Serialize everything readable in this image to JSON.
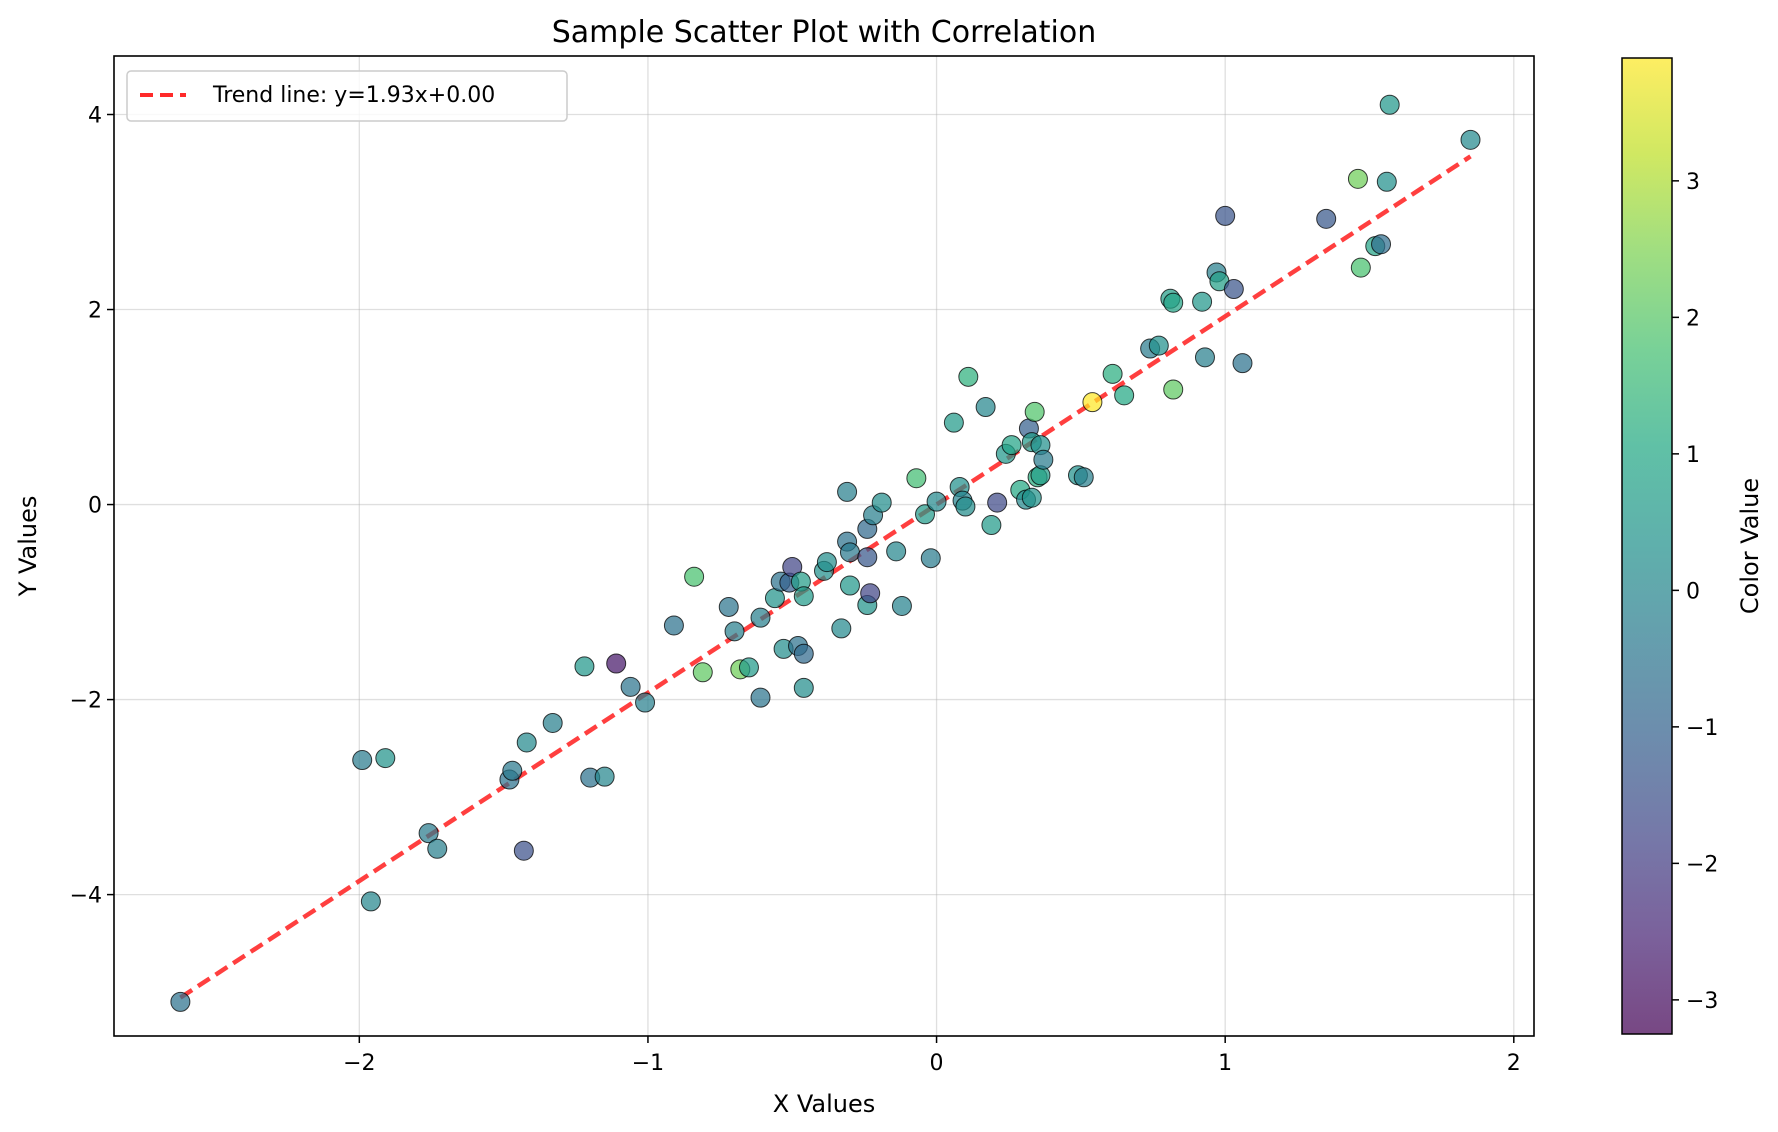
{
  "chart_data": {
    "type": "scatter",
    "title": "Sample Scatter Plot with Correlation",
    "xlabel": "X Values",
    "ylabel": "Y Values",
    "xlim": [
      -2.85,
      2.07
    ],
    "ylim": [
      -5.45,
      4.6
    ],
    "xticks": [
      -2,
      -1,
      0,
      1,
      2
    ],
    "yticks": [
      -4,
      -2,
      0,
      2,
      4
    ],
    "grid": true,
    "legend_position": "upper left",
    "trend": {
      "label": "Trend line: y=1.93x+0.00",
      "slope": 1.93,
      "intercept": 0.0,
      "x_range": [
        -2.62,
        1.85
      ],
      "color": "#ff2a2a"
    },
    "colorbar": {
      "label": "Color Value",
      "min": -3.25,
      "max": 3.9,
      "ticks": [
        -3,
        -2,
        -1,
        0,
        1,
        2,
        3
      ],
      "colormap": "viridis"
    },
    "points": [
      {
        "x": -2.62,
        "y": -5.1,
        "c": -0.6
      },
      {
        "x": -1.99,
        "y": -2.62,
        "c": -0.3
      },
      {
        "x": -1.91,
        "y": -2.6,
        "c": 0.4
      },
      {
        "x": -1.96,
        "y": -4.07,
        "c": 0.0
      },
      {
        "x": -1.76,
        "y": -3.37,
        "c": -0.3
      },
      {
        "x": -1.73,
        "y": -3.53,
        "c": -0.2
      },
      {
        "x": -1.48,
        "y": -2.82,
        "c": -0.6
      },
      {
        "x": -1.47,
        "y": -2.73,
        "c": -0.4
      },
      {
        "x": -1.43,
        "y": -3.55,
        "c": -1.5
      },
      {
        "x": -1.42,
        "y": -2.44,
        "c": 0.1
      },
      {
        "x": -1.33,
        "y": -2.24,
        "c": -0.2
      },
      {
        "x": -1.22,
        "y": -1.66,
        "c": 0.5
      },
      {
        "x": -1.2,
        "y": -2.8,
        "c": -0.6
      },
      {
        "x": -1.15,
        "y": -2.79,
        "c": 0.0
      },
      {
        "x": -1.11,
        "y": -1.63,
        "c": -2.8
      },
      {
        "x": -1.06,
        "y": -1.87,
        "c": -0.5
      },
      {
        "x": -1.01,
        "y": -2.03,
        "c": -0.2
      },
      {
        "x": -0.91,
        "y": -1.24,
        "c": -0.6
      },
      {
        "x": -0.84,
        "y": -0.74,
        "c": 1.8
      },
      {
        "x": -0.81,
        "y": -1.72,
        "c": 2.1
      },
      {
        "x": -0.72,
        "y": -1.05,
        "c": -0.5
      },
      {
        "x": -0.7,
        "y": -1.3,
        "c": -0.2
      },
      {
        "x": -0.68,
        "y": -1.69,
        "c": 2.3
      },
      {
        "x": -0.65,
        "y": -1.67,
        "c": 0.6
      },
      {
        "x": -0.61,
        "y": -1.16,
        "c": -0.2
      },
      {
        "x": -0.61,
        "y": -1.98,
        "c": -0.5
      },
      {
        "x": -0.56,
        "y": -0.96,
        "c": 0.4
      },
      {
        "x": -0.54,
        "y": -0.79,
        "c": -0.6
      },
      {
        "x": -0.53,
        "y": -1.48,
        "c": 0.2
      },
      {
        "x": -0.51,
        "y": -0.8,
        "c": -1.1
      },
      {
        "x": -0.5,
        "y": -0.64,
        "c": -1.8
      },
      {
        "x": -0.48,
        "y": -1.45,
        "c": -0.6
      },
      {
        "x": -0.47,
        "y": -0.79,
        "c": 0.7
      },
      {
        "x": -0.46,
        "y": -0.94,
        "c": 0.6
      },
      {
        "x": -0.46,
        "y": -1.53,
        "c": -0.8
      },
      {
        "x": -0.46,
        "y": -1.88,
        "c": 0.2
      },
      {
        "x": -0.39,
        "y": -0.68,
        "c": 0.3
      },
      {
        "x": -0.38,
        "y": -0.59,
        "c": 0.2
      },
      {
        "x": -0.33,
        "y": -1.27,
        "c": 0.1
      },
      {
        "x": -0.31,
        "y": -0.38,
        "c": -0.6
      },
      {
        "x": -0.31,
        "y": 0.13,
        "c": -0.2
      },
      {
        "x": -0.3,
        "y": -0.49,
        "c": -0.4
      },
      {
        "x": -0.3,
        "y": -0.83,
        "c": 0.5
      },
      {
        "x": -0.24,
        "y": -0.25,
        "c": -0.8
      },
      {
        "x": -0.24,
        "y": -0.54,
        "c": -1.3
      },
      {
        "x": -0.24,
        "y": -1.03,
        "c": 0.4
      },
      {
        "x": -0.23,
        "y": -0.91,
        "c": -1.8
      },
      {
        "x": -0.22,
        "y": -0.11,
        "c": -0.2
      },
      {
        "x": -0.19,
        "y": 0.02,
        "c": 0.2
      },
      {
        "x": -0.14,
        "y": -0.48,
        "c": 0.0
      },
      {
        "x": -0.12,
        "y": -1.04,
        "c": -0.1
      },
      {
        "x": -0.07,
        "y": 0.27,
        "c": 1.7
      },
      {
        "x": -0.04,
        "y": -0.1,
        "c": 0.6
      },
      {
        "x": -0.02,
        "y": -0.55,
        "c": -0.3
      },
      {
        "x": 0.0,
        "y": 0.03,
        "c": 0.1
      },
      {
        "x": 0.06,
        "y": 0.84,
        "c": 0.6
      },
      {
        "x": 0.08,
        "y": 0.18,
        "c": 0.3
      },
      {
        "x": 0.09,
        "y": 0.04,
        "c": -0.1
      },
      {
        "x": 0.1,
        "y": -0.02,
        "c": 0.2
      },
      {
        "x": 0.11,
        "y": 1.31,
        "c": 1.3
      },
      {
        "x": 0.17,
        "y": 1.0,
        "c": 0.0
      },
      {
        "x": 0.19,
        "y": -0.21,
        "c": 0.6
      },
      {
        "x": 0.21,
        "y": 0.02,
        "c": -1.7
      },
      {
        "x": 0.24,
        "y": 0.52,
        "c": 0.5
      },
      {
        "x": 0.26,
        "y": 0.61,
        "c": 0.9
      },
      {
        "x": 0.29,
        "y": 0.15,
        "c": 1.0
      },
      {
        "x": 0.31,
        "y": 0.05,
        "c": 0.1
      },
      {
        "x": 0.32,
        "y": 0.78,
        "c": -1.1
      },
      {
        "x": 0.33,
        "y": 0.07,
        "c": 0.4
      },
      {
        "x": 0.33,
        "y": 0.64,
        "c": 0.6
      },
      {
        "x": 0.34,
        "y": 0.95,
        "c": 1.9
      },
      {
        "x": 0.35,
        "y": 0.28,
        "c": 1.2
      },
      {
        "x": 0.36,
        "y": 0.3,
        "c": 0.7
      },
      {
        "x": 0.36,
        "y": 0.61,
        "c": 0.3
      },
      {
        "x": 0.37,
        "y": 0.46,
        "c": -0.3
      },
      {
        "x": 0.49,
        "y": 0.3,
        "c": 0.3
      },
      {
        "x": 0.51,
        "y": 0.28,
        "c": -0.2
      },
      {
        "x": 0.54,
        "y": 1.05,
        "c": 3.9
      },
      {
        "x": 0.61,
        "y": 1.34,
        "c": 1.2
      },
      {
        "x": 0.65,
        "y": 1.12,
        "c": 1.0
      },
      {
        "x": 0.74,
        "y": 1.6,
        "c": -0.3
      },
      {
        "x": 0.77,
        "y": 1.63,
        "c": 0.3
      },
      {
        "x": 0.81,
        "y": 2.11,
        "c": 0.7
      },
      {
        "x": 0.82,
        "y": 2.07,
        "c": 0.9
      },
      {
        "x": 0.82,
        "y": 1.18,
        "c": 2.1
      },
      {
        "x": 0.92,
        "y": 2.08,
        "c": 0.5
      },
      {
        "x": 0.93,
        "y": 1.51,
        "c": -0.2
      },
      {
        "x": 0.97,
        "y": 2.38,
        "c": -0.2
      },
      {
        "x": 0.98,
        "y": 2.29,
        "c": 0.8
      },
      {
        "x": 1.0,
        "y": 2.96,
        "c": -1.4
      },
      {
        "x": 1.03,
        "y": 2.21,
        "c": -1.4
      },
      {
        "x": 1.06,
        "y": 1.45,
        "c": -0.6
      },
      {
        "x": 1.35,
        "y": 2.93,
        "c": -1.3
      },
      {
        "x": 1.46,
        "y": 3.34,
        "c": 2.3
      },
      {
        "x": 1.47,
        "y": 2.43,
        "c": 1.8
      },
      {
        "x": 1.52,
        "y": 2.65,
        "c": 0.9
      },
      {
        "x": 1.54,
        "y": 2.67,
        "c": -0.7
      },
      {
        "x": 1.56,
        "y": 3.31,
        "c": 0.3
      },
      {
        "x": 1.57,
        "y": 4.1,
        "c": 0.5
      },
      {
        "x": 1.85,
        "y": 3.74,
        "c": 0.1
      }
    ]
  }
}
